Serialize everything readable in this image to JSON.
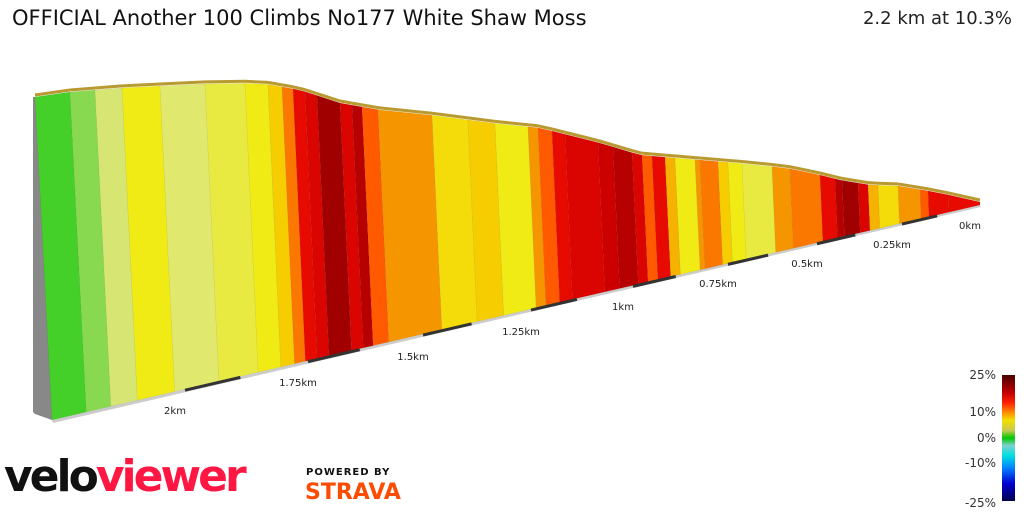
{
  "header": {
    "title": "OFFICIAL Another 100 Climbs No177 White Shaw Moss",
    "summary": "2.2 km at 10.3%"
  },
  "chart_data": {
    "type": "3d-gradient-profile",
    "total_distance_km": 2.2,
    "average_gradient_pct": 10.3,
    "x_ticks": [
      "2km",
      "1.75km",
      "1.5km",
      "1.25km",
      "1km",
      "0.75km",
      "0.5km",
      "0.25km",
      "0km"
    ],
    "segment_gradients_pct": [
      1,
      2,
      4,
      7,
      5,
      6,
      7,
      9,
      12,
      15,
      16,
      19,
      16,
      18,
      13,
      11,
      8,
      9,
      7,
      11,
      13,
      15,
      16,
      17,
      18,
      16,
      13,
      15,
      10,
      7,
      11,
      12,
      9,
      7,
      6,
      11,
      12,
      15,
      18,
      19,
      16,
      10,
      8,
      11,
      13,
      15,
      15
    ],
    "color_scale": {
      "labels": [
        "25%",
        "10%",
        "0%",
        "-10%",
        "-25%"
      ],
      "colors": [
        "#4a0000",
        "#c00000",
        "#ff9000",
        "#f0e000",
        "#00c800",
        "#00e0e0",
        "#0000d0",
        "#000050"
      ]
    }
  },
  "branding": {
    "logo_velo": "velo",
    "logo_viewer": "viewer",
    "powered_by": "POWERED BY",
    "strava": "STRAVA"
  }
}
